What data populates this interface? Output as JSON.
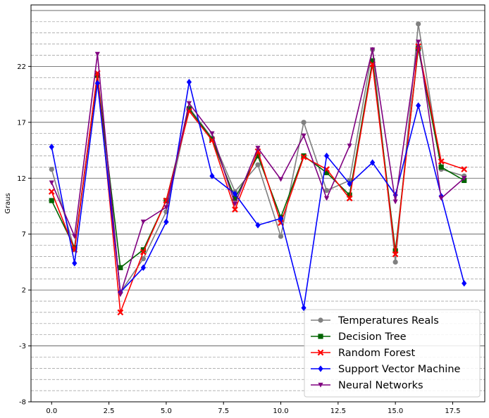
{
  "chart_data": {
    "type": "line",
    "ylabel": "Graus",
    "xlabel": "",
    "title": "",
    "xlim": [
      -0.9,
      18.9
    ],
    "ylim": [
      -8,
      27.5
    ],
    "xticks": [
      0,
      2.5,
      5,
      7.5,
      10,
      12.5,
      15,
      17.5
    ],
    "xtick_labels": [
      "0.0",
      "2.5",
      "5.0",
      "7.5",
      "10.0",
      "12.5",
      "15.0",
      "17.5"
    ],
    "yticks": [
      -8,
      -3,
      2,
      7,
      12,
      17,
      22
    ],
    "ytick_labels": [
      "-8",
      "-3",
      "2",
      "7",
      "12",
      "17",
      "22"
    ],
    "grid": "horizontal major solid and minor dashed",
    "legend_position": "lower-right",
    "x": [
      0,
      1,
      2,
      3,
      4,
      5,
      6,
      7,
      8,
      9,
      10,
      11,
      12,
      13,
      14,
      15,
      16,
      17,
      18
    ],
    "series": [
      {
        "name": "Temperatures Reals",
        "color": "#808080",
        "marker": "circle",
        "values": [
          12.8,
          5.6,
          21.2,
          1.8,
          4.8,
          9.0,
          18.3,
          15.6,
          10.8,
          13.2,
          6.8,
          17.0,
          10.9,
          11.8,
          23.5,
          4.5,
          25.8,
          12.8,
          12.2
        ]
      },
      {
        "name": "Decision Tree",
        "color": "#006400",
        "marker": "square",
        "values": [
          10.0,
          5.8,
          21.2,
          4.0,
          5.6,
          10.0,
          18.2,
          15.5,
          10.2,
          14.0,
          8.5,
          14.0,
          12.5,
          10.5,
          22.5,
          5.5,
          23.6,
          13.0,
          11.8
        ]
      },
      {
        "name": "Random Forest",
        "color": "#ff0000",
        "marker": "x",
        "values": [
          10.8,
          5.6,
          21.4,
          0.0,
          5.4,
          10.0,
          18.0,
          15.4,
          9.2,
          14.4,
          8.0,
          13.9,
          12.8,
          10.2,
          22.2,
          5.2,
          23.8,
          13.5,
          12.8
        ]
      },
      {
        "name": "Support Vector Machine",
        "color": "#0000ff",
        "marker": "diamond",
        "values": [
          14.8,
          4.4,
          20.5,
          1.8,
          4.0,
          8.1,
          20.6,
          12.2,
          10.6,
          7.8,
          8.4,
          0.4,
          14.0,
          11.5,
          13.4,
          10.5,
          18.5,
          10.4,
          2.6
        ]
      },
      {
        "name": "Neural Networks",
        "color": "#800080",
        "marker": "triangle-down",
        "values": [
          11.6,
          6.8,
          23.1,
          1.6,
          8.1,
          9.4,
          18.7,
          16.0,
          9.7,
          14.7,
          11.9,
          15.8,
          10.2,
          14.9,
          23.5,
          9.9,
          24.2,
          10.2,
          12.0
        ]
      }
    ]
  }
}
